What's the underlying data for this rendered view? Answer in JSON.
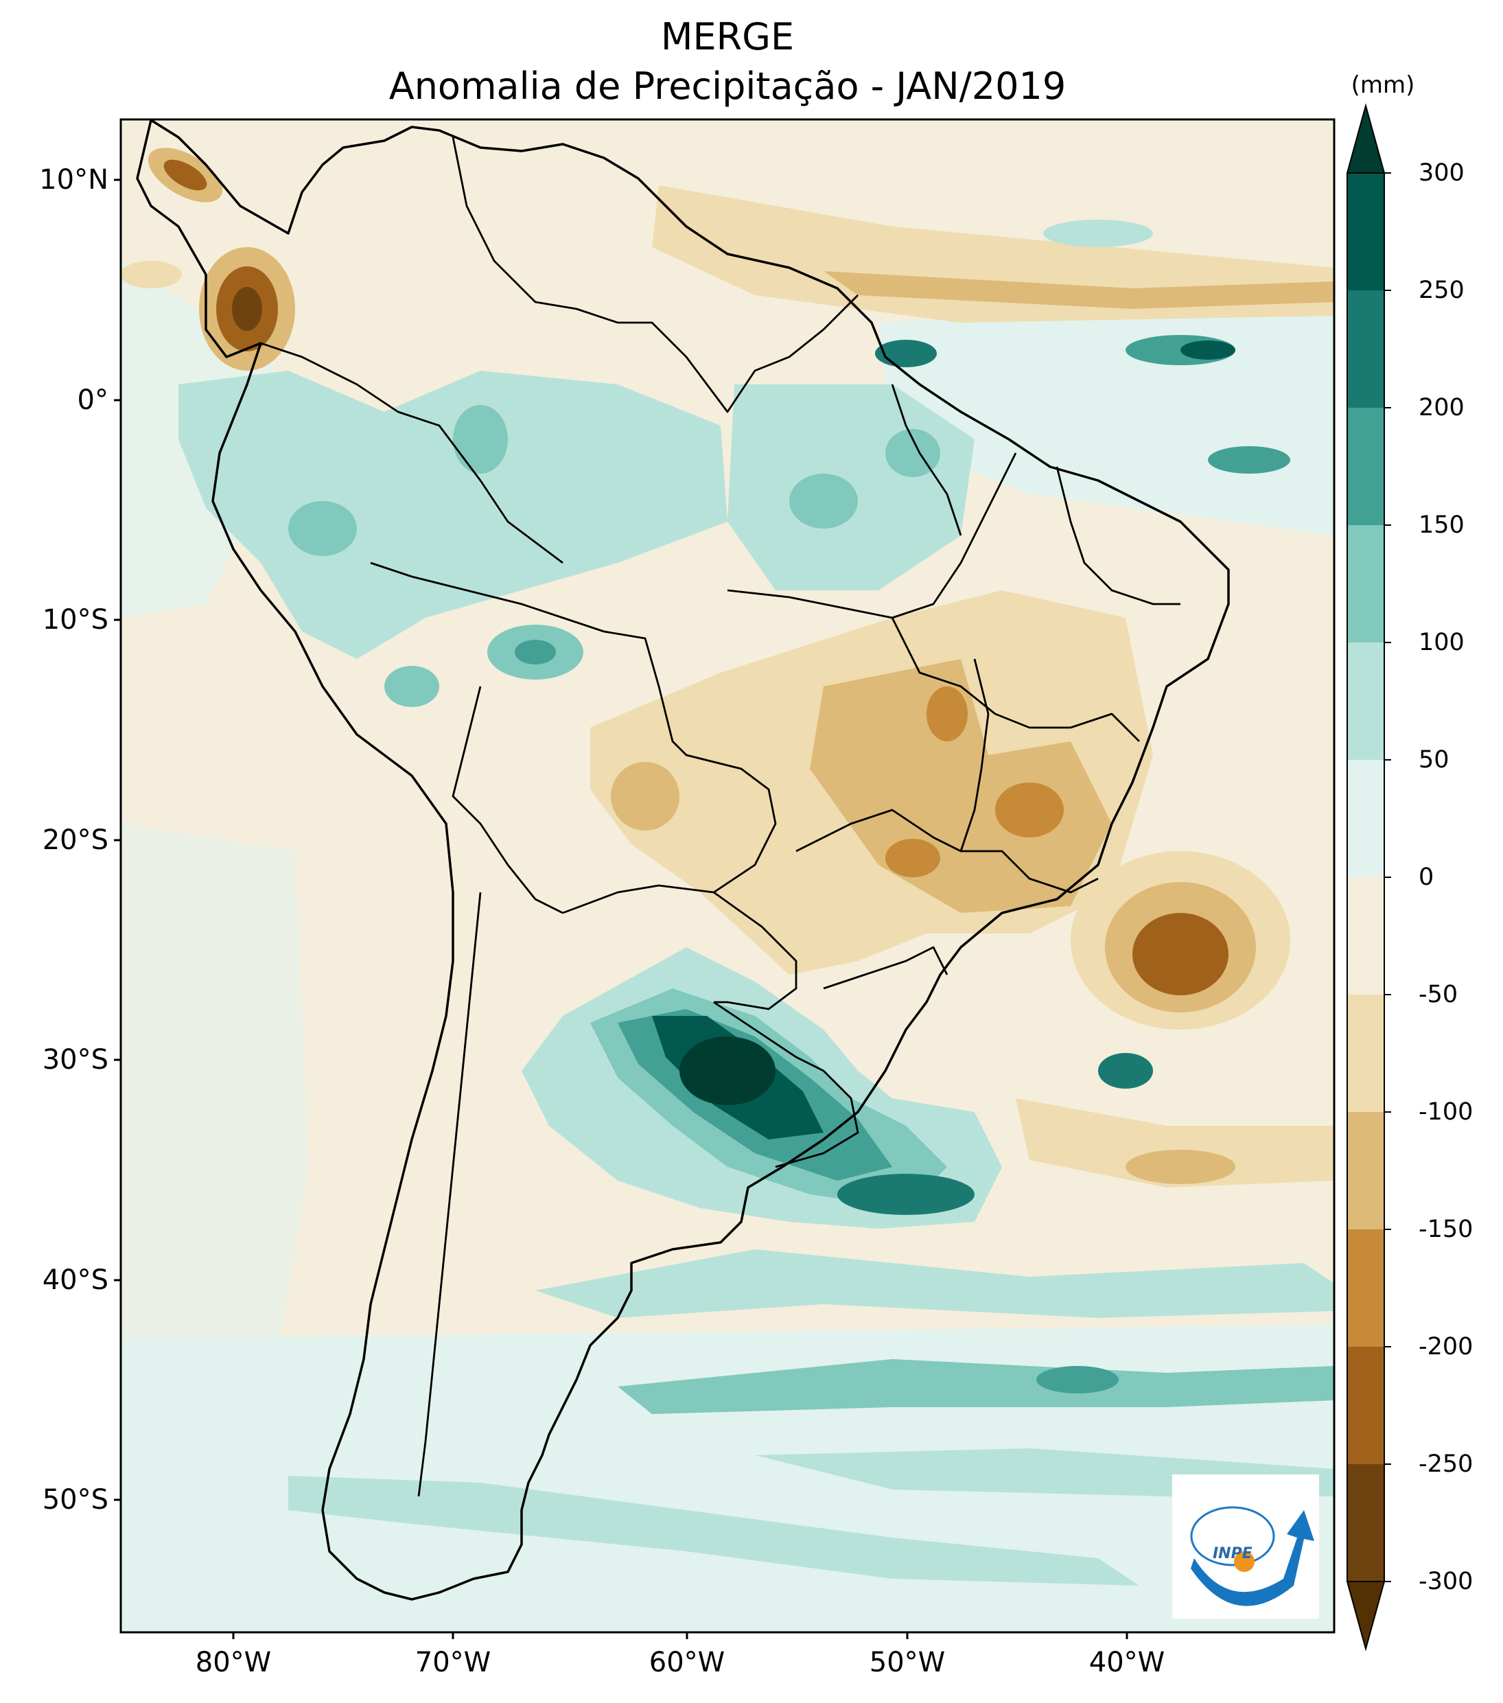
{
  "title": {
    "line1": "MERGE",
    "line2": "Anomalia de Precipitação - JAN/2019"
  },
  "latitude_labels": [
    "10°N",
    "0°",
    "10°S",
    "20°S",
    "30°S",
    "40°S",
    "50°S"
  ],
  "longitude_labels": [
    "80°W",
    "70°W",
    "60°W",
    "50°W",
    "40°W"
  ],
  "colorbar": {
    "unit": "(mm)",
    "tick_labels": [
      "300",
      "250",
      "200",
      "150",
      "100",
      "50",
      "0",
      "-50",
      "-100",
      "-150",
      "-200",
      "-250",
      "-300"
    ],
    "colors": [
      "#003c30",
      "#01594f",
      "#1a7a72",
      "#42a095",
      "#80c9bc",
      "#b7e2da",
      "#e2f2ee",
      "#f5eedc",
      "#efdcb0",
      "#ddba77",
      "#c68a38",
      "#a0621b",
      "#6e4310",
      "#543005"
    ]
  },
  "logo": {
    "text": "INPE"
  },
  "colors": {
    "land_base": "#f5eedc",
    "ocean_base": "#e2f2ee",
    "outline": "#000000"
  }
}
